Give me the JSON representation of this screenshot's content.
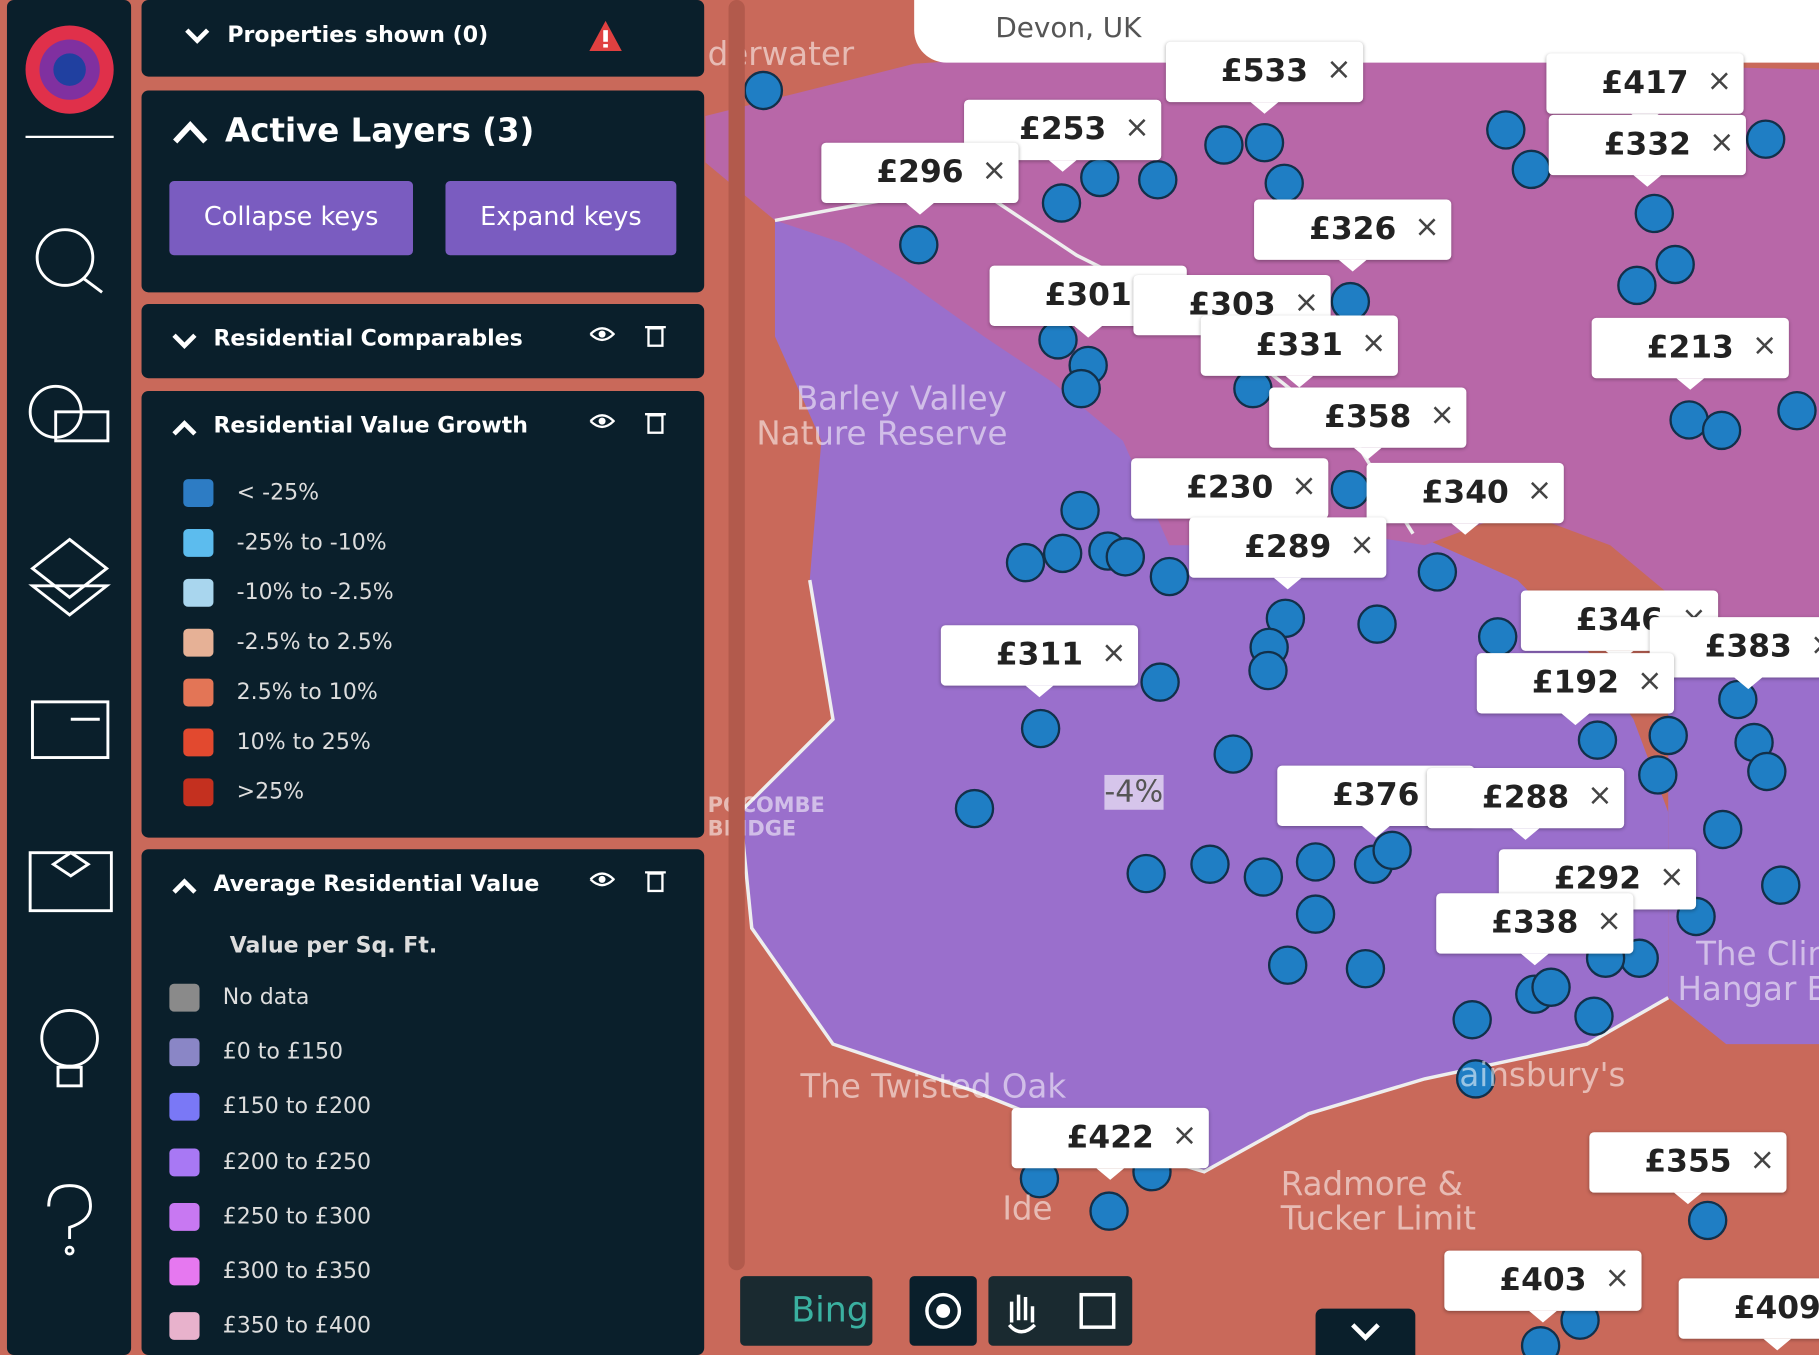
{
  "search": "Devon, UK",
  "properties": {
    "title": "Properties shown (0)"
  },
  "active_layers": {
    "title": "Active Layers (3)",
    "buttons": [
      "Collapse keys",
      "Expand keys"
    ]
  },
  "layers": [
    {
      "title": "Residential Comparables"
    },
    {
      "title": "Residential Value Growth",
      "keys": [
        {
          "label": "< -25%",
          "color": "#2d7cc4"
        },
        {
          "label": "-25% to -10%",
          "color": "#5cbcee"
        },
        {
          "label": "-10% to -2.5%",
          "color": "#a9d6ee"
        },
        {
          "label": "-2.5% to 2.5%",
          "color": "#e6b196"
        },
        {
          "label": "2.5% to 10%",
          "color": "#e37556"
        },
        {
          "label": "10% to 25%",
          "color": "#e2492f"
        },
        {
          "label": ">25%",
          "color": "#c4301f"
        }
      ]
    },
    {
      "title": "Average Residential Value",
      "subtitle": "Value per Sq. Ft.",
      "keys": [
        {
          "label": "No data",
          "color": "#8a8a8a"
        },
        {
          "label": "£0 to £150",
          "color": "#8a86c6"
        },
        {
          "label": "£150 to £200",
          "color": "#7a78f6"
        },
        {
          "label": "£200 to £250",
          "color": "#a878f4"
        },
        {
          "label": "£250 to £300",
          "color": "#c878f2"
        },
        {
          "label": "£300 to £350",
          "color": "#e678f0"
        },
        {
          "label": "£350 to £400",
          "color": "#e8b2cc"
        }
      ]
    }
  ],
  "map": {
    "prices": [
      "£533",
      "£417",
      "£253",
      "£332",
      "£296",
      "£326",
      "£301",
      "£303",
      "£331",
      "£213",
      "£358",
      "£230",
      "£340",
      "£289",
      "£311",
      "£346",
      "£383",
      "£192",
      "£376",
      "£288",
      "£292",
      "£338",
      "£422",
      "£355",
      "£403",
      "£409"
    ],
    "places": [
      "derwater",
      "Barley Valley",
      "Nature Reserve",
      "The Twisted Oak",
      "Ide",
      "Radmore &",
      "Tucker Limit",
      "POCOMBE",
      "BRIDGE",
      "ainsbury's",
      "The Clin",
      "Hangar E",
      "-4%"
    ],
    "attribution": "Bing"
  }
}
